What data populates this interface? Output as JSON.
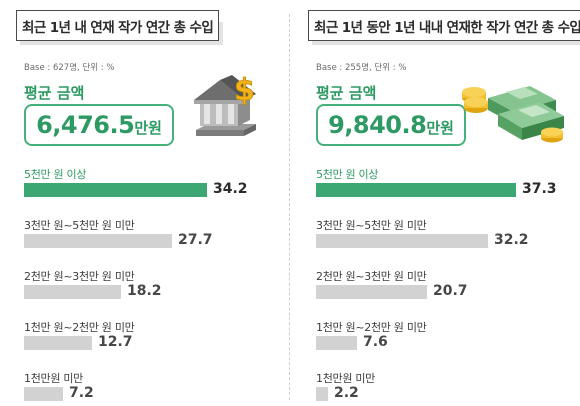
{
  "chart_data": [
    {
      "type": "bar",
      "title": "최근 1년 내 연재 작가 연간 총 수입",
      "base_note": "Base : 627명, 단위 : %",
      "average_label": "평균 금액",
      "average_value": "6,476.5",
      "average_unit": "만원",
      "illustration": "bank-building-dollar-icon",
      "categories": [
        "5천만 원 이상",
        "3천만 원~5천만 원 미만",
        "2천만 원~3천만 원 미만",
        "1천만 원~2천만 원 미만",
        "1천만원 미만"
      ],
      "values": [
        34.2,
        27.7,
        18.2,
        12.7,
        7.2
      ],
      "value_labels": [
        "34.2",
        "27.7",
        "18.2",
        "12.7",
        "7.2"
      ],
      "highlight_index": 0,
      "unit": "%"
    },
    {
      "type": "bar",
      "title": "최근 1년 동안 1년 내내 연재한 작가 연간 총 수입",
      "base_note": "Base : 255명, 단위 : %",
      "average_label": "평균 금액",
      "average_value": "9,840.8",
      "average_unit": "만원",
      "illustration": "money-stack-coins-icon",
      "categories": [
        "5천만 원 이상",
        "3천만 원~5천만 원 미만",
        "2천만 원~3천만 원 미만",
        "1천만 원~2천만 원 미만",
        "1천만원 미만"
      ],
      "values": [
        37.3,
        32.2,
        20.7,
        7.6,
        2.2
      ],
      "value_labels": [
        "37.3",
        "32.2",
        "20.7",
        "7.6",
        "2.2"
      ],
      "highlight_index": 0,
      "unit": "%"
    }
  ],
  "colors": {
    "highlight_bar": "#3ca773",
    "normal_bar": "#d2d2d2",
    "accent_text": "#2e9a63",
    "box_border": "#46b07a"
  }
}
